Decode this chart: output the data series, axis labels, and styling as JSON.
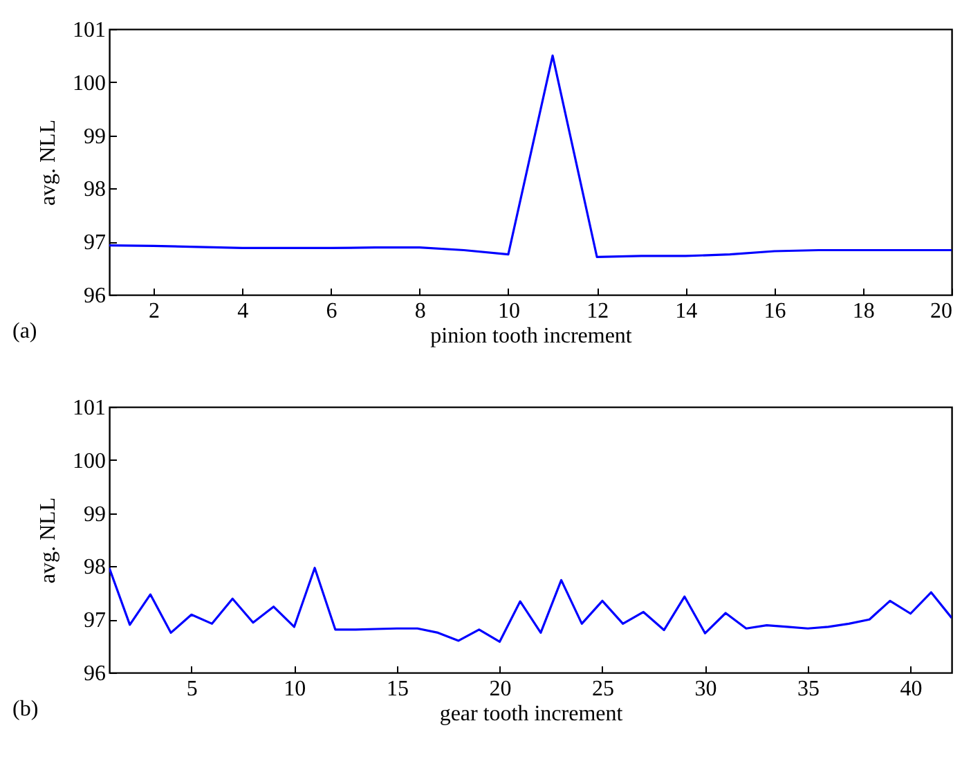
{
  "chart_data": [
    {
      "type": "line",
      "xlabel": "pinion tooth increment",
      "ylabel": "avg. NLL",
      "annotations": [
        "(a)"
      ],
      "x": [
        1,
        2,
        3,
        4,
        5,
        6,
        7,
        8,
        9,
        10,
        11,
        12,
        13,
        14,
        15,
        16,
        17,
        18,
        19,
        20
      ],
      "series": [
        {
          "color": "#0000ff",
          "values": [
            96.93,
            96.92,
            96.9,
            96.88,
            96.88,
            96.88,
            96.89,
            96.89,
            96.84,
            96.76,
            100.5,
            96.71,
            96.73,
            96.73,
            96.76,
            96.82,
            96.84,
            96.84,
            96.84,
            96.84
          ]
        }
      ],
      "xlim": [
        1,
        20
      ],
      "xticks": [
        2,
        4,
        6,
        8,
        10,
        12,
        14,
        16,
        18,
        20
      ],
      "ylim": [
        96,
        101
      ],
      "yticks": [
        96,
        97,
        98,
        99,
        100,
        101
      ],
      "grid": false
    },
    {
      "type": "line",
      "xlabel": "gear tooth increment",
      "ylabel": "avg. NLL",
      "annotations": [
        "(b)"
      ],
      "x": [
        1,
        2,
        3,
        4,
        5,
        6,
        7,
        8,
        9,
        10,
        11,
        12,
        13,
        14,
        15,
        16,
        17,
        18,
        19,
        20,
        21,
        22,
        23,
        24,
        25,
        26,
        27,
        28,
        29,
        30,
        31,
        32,
        33,
        34,
        35,
        36,
        37,
        38,
        39,
        40,
        41,
        42
      ],
      "series": [
        {
          "color": "#0000ff",
          "values": [
            97.97,
            96.9,
            97.47,
            96.75,
            97.09,
            96.92,
            97.39,
            96.94,
            97.24,
            96.86,
            97.97,
            96.81,
            96.81,
            96.82,
            96.83,
            96.83,
            96.75,
            96.6,
            96.81,
            96.58,
            97.34,
            96.75,
            97.74,
            96.92,
            97.35,
            96.92,
            97.14,
            96.8,
            97.43,
            96.74,
            97.12,
            96.83,
            96.89,
            96.86,
            96.83,
            96.86,
            96.92,
            97.0,
            97.35,
            97.11,
            97.51,
            97.03
          ]
        }
      ],
      "xlim": [
        1,
        42
      ],
      "xticks": [
        5,
        10,
        15,
        20,
        25,
        30,
        35,
        40
      ],
      "ylim": [
        96,
        101
      ],
      "yticks": [
        96,
        97,
        98,
        99,
        100,
        101
      ],
      "grid": false
    }
  ]
}
